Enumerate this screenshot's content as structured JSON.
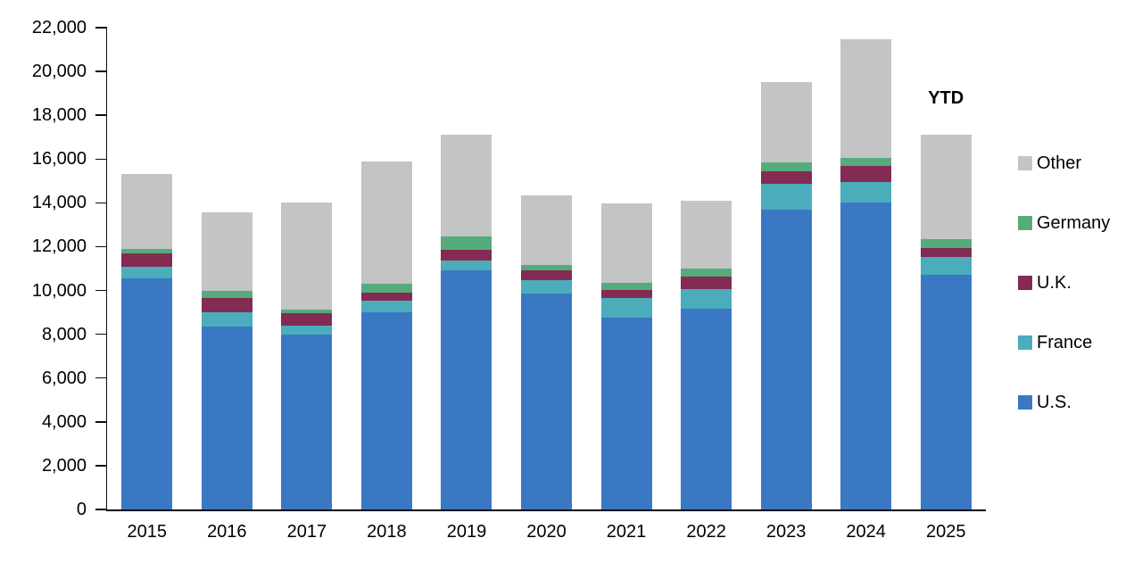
{
  "chart_data": {
    "type": "bar",
    "subtype": "stacked-vertical",
    "title": "",
    "xlabel": "",
    "ylabel": "",
    "categories": [
      "2015",
      "2016",
      "2017",
      "2018",
      "2019",
      "2020",
      "2021",
      "2022",
      "2023",
      "2024",
      "2025"
    ],
    "series": [
      {
        "name": "U.S.",
        "color": "#3B78C3",
        "values": [
          10550,
          8360,
          7990,
          9000,
          10920,
          9850,
          8770,
          9180,
          13680,
          14030,
          10700
        ]
      },
      {
        "name": "France",
        "color": "#4BACBC",
        "values": [
          530,
          650,
          400,
          520,
          460,
          630,
          880,
          880,
          1190,
          930,
          820
        ]
      },
      {
        "name": "U.K.",
        "color": "#832B52",
        "values": [
          610,
          660,
          580,
          390,
          480,
          450,
          370,
          570,
          560,
          720,
          410
        ]
      },
      {
        "name": "Germany",
        "color": "#56AB7D",
        "values": [
          200,
          330,
          140,
          380,
          610,
          240,
          310,
          380,
          430,
          380,
          410
        ]
      },
      {
        "name": "Other",
        "color": "#C3C4C4",
        "values": [
          3410,
          3550,
          4910,
          5590,
          4640,
          3160,
          3640,
          3100,
          3670,
          5400,
          4780
        ]
      }
    ],
    "totals": [
      15300,
      13550,
      14020,
      15880,
      17110,
      14330,
      13970,
      14110,
      19530,
      21460,
      17120
    ],
    "ylim": [
      0,
      22000
    ],
    "ytick_step": 2000,
    "ytick_labels": [
      "0",
      "2,000",
      "4,000",
      "6,000",
      "8,000",
      "10,000",
      "12,000",
      "14,000",
      "16,000",
      "18,000",
      "20,000",
      "22,000"
    ],
    "grid": false,
    "legend_position": "right",
    "legend_order_top_to_bottom": [
      "Other",
      "Germany",
      "U.K.",
      "France",
      "U.S."
    ],
    "annotation": {
      "text": "YTD",
      "target_category": "2025"
    },
    "axis_color": "#0d0d0d",
    "background_color": "#ffffff"
  }
}
